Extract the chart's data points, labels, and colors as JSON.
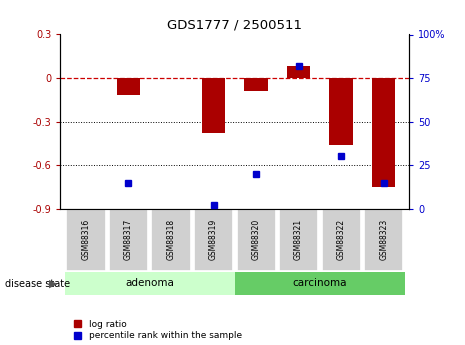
{
  "title": "GDS1777 / 2500511",
  "samples": [
    "GSM88316",
    "GSM88317",
    "GSM88318",
    "GSM88319",
    "GSM88320",
    "GSM88321",
    "GSM88322",
    "GSM88323"
  ],
  "log_ratio": [
    0.0,
    -0.12,
    0.0,
    -0.38,
    -0.09,
    0.08,
    -0.46,
    -0.75
  ],
  "percentile_rank": [
    null,
    15,
    null,
    2,
    20,
    82,
    30,
    15
  ],
  "adenoma_color": "#ccffcc",
  "carcinoma_color": "#66cc66",
  "bar_color": "#aa0000",
  "dot_color": "#0000cc",
  "ref_line_color": "#cc0000",
  "ylim_left": [
    -0.9,
    0.3
  ],
  "ylim_right": [
    0,
    100
  ],
  "yticks_left": [
    -0.9,
    -0.6,
    -0.3,
    0.0,
    0.3
  ],
  "yticks_right": [
    0,
    25,
    50,
    75,
    100
  ],
  "bar_width": 0.55
}
